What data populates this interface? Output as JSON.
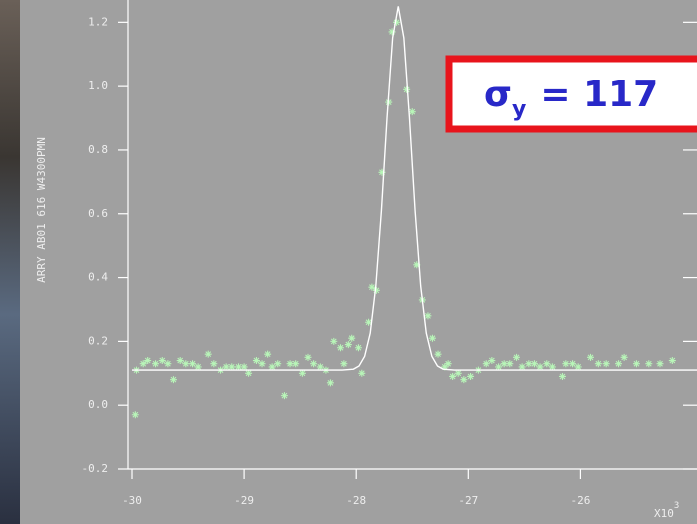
{
  "chart_data": {
    "type": "scatter",
    "y_label": "ARRY AB01 616 W4300PMN",
    "x_multiplier": {
      "base": "X10",
      "exponent": "3"
    },
    "annotation": {
      "symbol": "σ",
      "subscript": "y",
      "text": "= 117"
    },
    "xlim": [
      -30,
      -24.96
    ],
    "ylim": [
      -0.2,
      1.27
    ],
    "xticks": [
      -30,
      -29,
      -28,
      -27,
      -26
    ],
    "yticks": [
      {
        "value": -0.2,
        "label": "-0.2"
      },
      {
        "value": 0,
        "label": "0.0"
      },
      0.2,
      0.4,
      0.6,
      0.8,
      {
        "value": 1,
        "label": "1.0"
      },
      1.2
    ],
    "series": [
      {
        "type": "scatter",
        "color": "#b8f5b8",
        "x": [
          -29.97,
          -29.96,
          -29.9,
          -29.86,
          -29.79,
          -29.73,
          -29.68,
          -29.63,
          -29.57,
          -29.52,
          -29.46,
          -29.41,
          -29.32,
          -29.27,
          -29.21,
          -29.16,
          -29.11,
          -29.05,
          -29.0,
          -28.96,
          -28.89,
          -28.84,
          -28.79,
          -28.75,
          -28.7,
          -28.64,
          -28.59,
          -28.54,
          -28.48,
          -28.43,
          -28.38,
          -28.32,
          -28.27,
          -28.23,
          -28.2,
          -28.14,
          -28.11,
          -28.07,
          -28.04,
          -27.98,
          -27.95,
          -27.89,
          -27.86,
          -27.82,
          -27.77,
          -27.71,
          -27.68,
          -27.64,
          -27.55,
          -27.5,
          -27.46,
          -27.41,
          -27.36,
          -27.32,
          -27.27,
          -27.21,
          -27.18,
          -27.14,
          -27.09,
          -27.04,
          -26.98,
          -26.91,
          -26.84,
          -26.79,
          -26.73,
          -26.68,
          -26.63,
          -26.57,
          -26.52,
          -26.46,
          -26.41,
          -26.36,
          -26.3,
          -26.25,
          -26.16,
          -26.13,
          -26.07,
          -26.02,
          -25.91,
          -25.84,
          -25.77,
          -25.66,
          -25.61,
          -25.5,
          -25.39,
          -25.29,
          -25.18
        ],
        "values": [
          -0.03,
          0.11,
          0.13,
          0.14,
          0.13,
          0.14,
          0.13,
          0.08,
          0.14,
          0.13,
          0.13,
          0.12,
          0.16,
          0.13,
          0.11,
          0.12,
          0.12,
          0.12,
          0.12,
          0.1,
          0.14,
          0.13,
          0.16,
          0.12,
          0.13,
          0.03,
          0.13,
          0.13,
          0.1,
          0.15,
          0.13,
          0.12,
          0.11,
          0.07,
          0.2,
          0.18,
          0.13,
          0.19,
          0.21,
          0.18,
          0.1,
          0.26,
          0.37,
          0.36,
          0.73,
          0.95,
          1.17,
          1.2,
          0.99,
          0.92,
          0.44,
          0.33,
          0.28,
          0.21,
          0.16,
          0.12,
          0.13,
          0.09,
          0.1,
          0.08,
          0.09,
          0.11,
          0.13,
          0.14,
          0.12,
          0.13,
          0.13,
          0.15,
          0.12,
          0.13,
          0.13,
          0.12,
          0.13,
          0.12,
          0.09,
          0.13,
          0.13,
          0.12,
          0.15,
          0.13,
          0.13,
          0.13,
          0.15,
          0.13,
          0.13,
          0.13,
          0.14
        ]
      },
      {
        "type": "line",
        "color": "#ffffff",
        "x": [
          -30,
          -28.125,
          -28.025,
          -27.975,
          -27.925,
          -27.875,
          -27.825,
          -27.775,
          -27.725,
          -27.675,
          -27.625,
          -27.575,
          -27.525,
          -27.475,
          -27.425,
          -27.375,
          -27.325,
          -27.275,
          -27.225,
          -27.125,
          -24.96
        ],
        "values": [
          0.11,
          0.11,
          0.113,
          0.123,
          0.153,
          0.226,
          0.374,
          0.611,
          0.901,
          1.151,
          1.25,
          1.151,
          0.901,
          0.611,
          0.374,
          0.226,
          0.153,
          0.123,
          0.113,
          0.11,
          0.11
        ]
      }
    ]
  }
}
